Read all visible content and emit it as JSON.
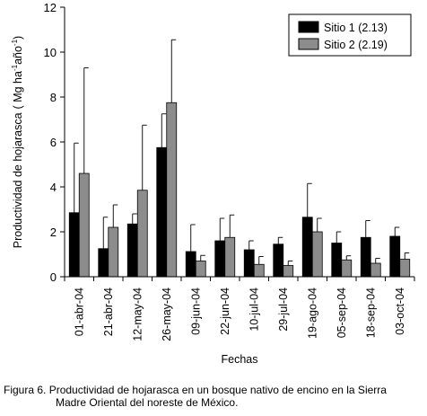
{
  "chart_data": {
    "type": "bar",
    "xlabel": "Fechas",
    "ylabel": "Productividad de hojarasca",
    "ylabel_units_prefix": "( Mg  ha",
    "ylabel_units_exp1": "-1",
    "ylabel_units_mid": "año",
    "ylabel_units_exp2": "-1",
    "ylabel_units_suffix": ")",
    "ylim": [
      0,
      12
    ],
    "yticks": [
      "0",
      "2",
      "4",
      "6",
      "8",
      "10",
      "12"
    ],
    "categories": [
      "01-abr-04",
      "21-abr-04",
      "12-may-04",
      "26-may-04",
      "09-jun-04",
      "22-jun-04",
      "10-jul-04",
      "29-jul-04",
      "19-ago-04",
      "05-sep-04",
      "18-sep-04",
      "03-oct-04"
    ],
    "series": [
      {
        "name": "Sitio 1 (2.13)",
        "color": "#000000",
        "values": [
          2.85,
          1.25,
          2.35,
          5.75,
          1.12,
          1.6,
          1.2,
          1.45,
          2.65,
          1.5,
          1.75,
          1.8
        ],
        "errors": [
          3.1,
          1.4,
          0.45,
          1.5,
          1.2,
          1.0,
          0.4,
          0.3,
          1.5,
          0.5,
          0.75,
          0.4
        ]
      },
      {
        "name": "Sitio 2 (2.19)",
        "color": "#8c8c8c",
        "values": [
          4.6,
          2.2,
          3.85,
          7.75,
          0.7,
          1.75,
          0.55,
          0.5,
          2.0,
          0.75,
          0.6,
          0.78
        ],
        "errors": [
          4.7,
          1.0,
          2.9,
          2.8,
          0.25,
          1.0,
          0.35,
          0.2,
          0.6,
          0.18,
          0.22,
          0.28
        ]
      }
    ],
    "legend_position": "top-right",
    "grid": false
  },
  "caption": {
    "line1": "Figura 6. Productividad de hojarasca en un bosque nativo de encino en la Sierra",
    "line2": "Madre Oriental del noreste de México."
  }
}
